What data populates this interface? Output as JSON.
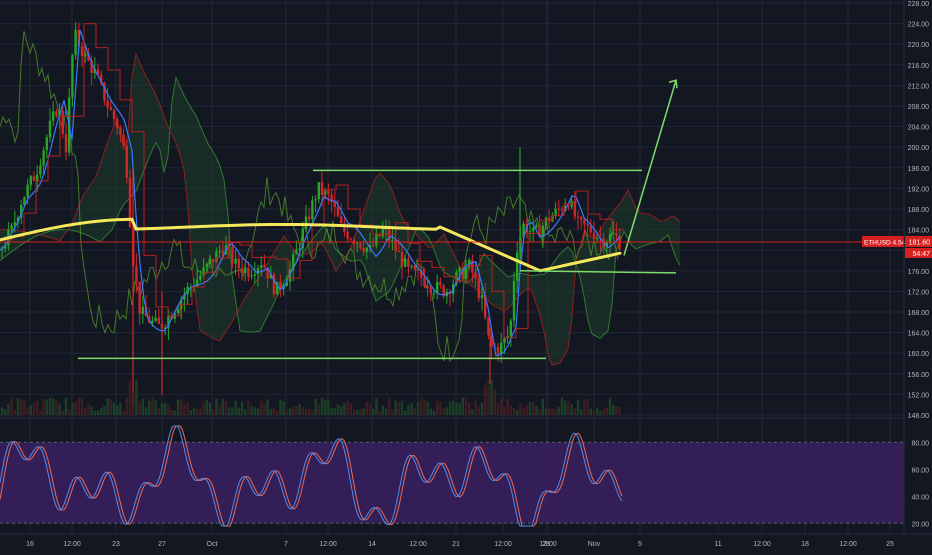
{
  "colors": {
    "background": "#131722",
    "grid": "#222735",
    "axis_text": "#b2b5be",
    "candle_up": "#26a626",
    "candle_down": "#d02828",
    "ma_long": "#f5e85c",
    "ma_fast": "#3a78ff",
    "span_a": "#2f7a2f",
    "span_b": "#8a2020",
    "lagging": "#4f8a2a",
    "drawing_lines": "#7fdc6b",
    "price_line": "#d62020",
    "oscillator_band": "#3b2060",
    "stoch_k": "#4e8cf0",
    "stoch_d": "#f06a4e"
  },
  "ticker_label": "ETHUSD 4.54k · 181.60",
  "countdown_label": "54:47",
  "chart_data": [
    {
      "type": "candlestick",
      "y_axis": {
        "ticks": [
          "228.00",
          "224.00",
          "220.00",
          "216.00",
          "212.00",
          "208.00",
          "204.00",
          "200.00",
          "196.00",
          "192.00",
          "188.00",
          "184.00",
          "180.00",
          "176.00",
          "172.00",
          "168.00",
          "164.00",
          "160.00",
          "156.00",
          "152.00",
          "148.00"
        ],
        "range": [
          148,
          228
        ]
      },
      "x_axis": {
        "ticks": [
          "16",
          "12:00",
          "23",
          "27",
          "Oct",
          "7",
          "12:00",
          "14",
          "12:00",
          "21",
          "12:00",
          "28",
          "12:00",
          "Nov",
          "5",
          "11",
          "12:00",
          "18",
          "12:00",
          "25"
        ]
      },
      "last_price": 181.6,
      "current_price_line": 181.6,
      "support_level": 159,
      "resistance_level": 195.5,
      "breakout_support_level": 176
    },
    {
      "type": "line",
      "name": "Stochastic",
      "y_axis": {
        "ticks": [
          "80.00",
          "60.00",
          "40.00",
          "20.00"
        ],
        "range": [
          15,
          95
        ]
      },
      "band": [
        20,
        80
      ]
    }
  ]
}
